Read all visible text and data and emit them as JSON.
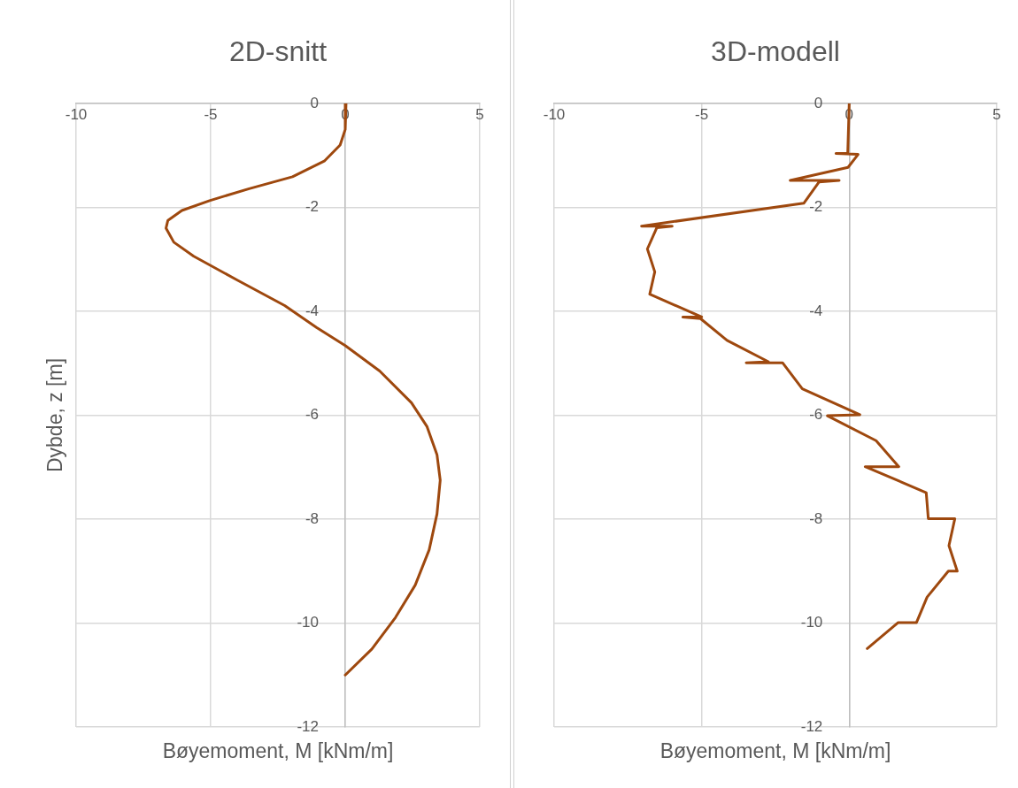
{
  "chart_data": [
    {
      "type": "line",
      "title": "2D-snitt",
      "xlabel": "Bøyemoment, M [kNm/m]",
      "ylabel": "Dybde, z [m]",
      "xlim": [
        -10,
        5
      ],
      "ylim": [
        -12,
        0
      ],
      "xticks": [
        -10,
        -5,
        0,
        5
      ],
      "yticks": [
        -12,
        -10,
        -8,
        -6,
        -4,
        -2,
        0
      ],
      "grid": true,
      "series": [
        {
          "color": "#9e480e",
          "x": [
            0.03,
            0,
            -0.19,
            -0.78,
            -1.96,
            -3.57,
            -5.04,
            -6.07,
            -6.59,
            -6.66,
            -6.37,
            -5.63,
            -4.01,
            -2.25,
            -1.07,
            0,
            1.28,
            2.46,
            3.04,
            3.41,
            3.53,
            3.41,
            3.12,
            2.6,
            1.87,
            0.99,
            0
          ],
          "values": [
            0,
            -0.5,
            -0.8,
            -1.11,
            -1.41,
            -1.64,
            -1.87,
            -2.06,
            -2.25,
            -2.4,
            -2.67,
            -2.94,
            -3.4,
            -3.89,
            -4.31,
            -4.66,
            -5.15,
            -5.76,
            -6.22,
            -6.76,
            -7.25,
            -7.9,
            -8.59,
            -9.27,
            -9.89,
            -10.5,
            -11
          ]
        }
      ]
    },
    {
      "type": "line",
      "title": "3D-modell",
      "xlabel": "Bøyemoment, M [kNm/m]",
      "xlim": [
        -10,
        5
      ],
      "ylim": [
        -12,
        0
      ],
      "xticks": [
        -10,
        -5,
        0,
        5
      ],
      "yticks": [
        -12,
        -10,
        -8,
        -6,
        -4,
        -2,
        0
      ],
      "grid": true,
      "series": [
        {
          "color": "#9e480e",
          "x": [
            0,
            -0.05,
            -0.45,
            0.3,
            -0.04,
            -2,
            -0.34,
            -1.02,
            -1.54,
            -7.04,
            -6,
            -6.52,
            -6.84,
            -6.59,
            -6.76,
            -5,
            -5.64,
            -5.04,
            -4.14,
            -2.74,
            -3.49,
            -2.26,
            -1.59,
            0.36,
            -0.74,
            0.91,
            1.68,
            0.54,
            2.61,
            2.68,
            3.58,
            3.38,
            3.66,
            3.36,
            2.64,
            2.28,
            1.66,
            0.61
          ],
          "values": [
            0,
            -0.96,
            -0.96,
            -0.98,
            -1.23,
            -1.48,
            -1.48,
            -1.51,
            -1.92,
            -2.36,
            -2.36,
            -2.39,
            -2.8,
            -3.24,
            -3.67,
            -4.11,
            -4.11,
            -4.14,
            -4.56,
            -4.97,
            -4.99,
            -4.99,
            -5.49,
            -5.99,
            -6.01,
            -6.49,
            -6.99,
            -6.99,
            -7.49,
            -7.99,
            -7.99,
            -8.51,
            -9,
            -9,
            -9.5,
            -9.99,
            -9.99,
            -10.49
          ]
        }
      ]
    }
  ]
}
